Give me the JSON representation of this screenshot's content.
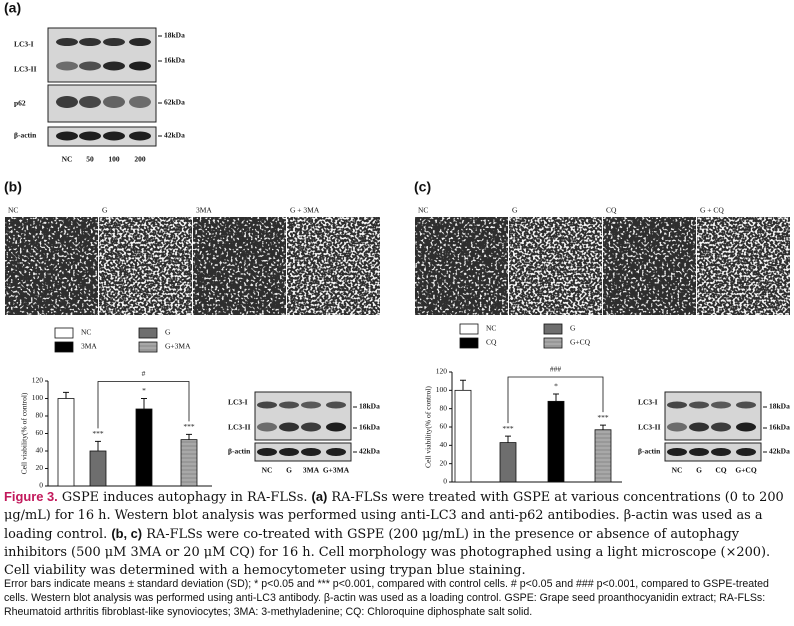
{
  "panel_a": {
    "label": "(a)",
    "rows": [
      "LC3-I",
      "LC3-II",
      "p62",
      "β-actin"
    ],
    "markers": [
      "18kDa",
      "16kDa",
      "62kDa",
      "42kDa"
    ],
    "lanes": [
      "NC",
      "50",
      "100",
      "200"
    ]
  },
  "panel_b": {
    "label": "(b)",
    "images": [
      "NC",
      "G",
      "3MA",
      "G + 3MA"
    ],
    "chart": {
      "type": "bar",
      "y_label": "Cell viability(% of control)",
      "ylim": [
        0,
        120
      ],
      "yticks": [
        0,
        20,
        40,
        60,
        80,
        100,
        120
      ],
      "comparison": "#",
      "series": [
        {
          "name": "NC",
          "color": "#ffffff",
          "values": [
            100
          ],
          "errors": [
            7
          ],
          "annotations": [
            null
          ]
        },
        {
          "name": "G",
          "color": "#6e6e6e",
          "values": [
            40
          ],
          "errors": [
            11
          ],
          "annotations": [
            "***"
          ]
        },
        {
          "name": "3MA",
          "color": "#000000",
          "values": [
            88
          ],
          "errors": [
            12
          ],
          "annotations": [
            "*"
          ]
        },
        {
          "name": "G+3MA",
          "color": "#a8a8a8",
          "values": [
            53
          ],
          "errors": [
            6
          ],
          "annotations": [
            "***"
          ]
        }
      ]
    },
    "blot": {
      "rows": [
        "LC3-I",
        "LC3-II",
        "β-actin"
      ],
      "markers": [
        "18kDa",
        "16kDa",
        "42kDa"
      ],
      "lanes": [
        "NC",
        "G",
        "3MA",
        "G+3MA"
      ]
    }
  },
  "panel_c": {
    "label": "(c)",
    "images": [
      "NC",
      "G",
      "CQ",
      "G + CQ"
    ],
    "chart": {
      "type": "bar",
      "y_label": "Cell viability(% of control)",
      "ylim": [
        0,
        120
      ],
      "yticks": [
        0,
        20,
        40,
        60,
        80,
        100,
        120
      ],
      "comparison": "###",
      "series": [
        {
          "name": "NC",
          "color": "#ffffff",
          "values": [
            100
          ],
          "errors": [
            11
          ],
          "annotations": [
            null
          ]
        },
        {
          "name": "G",
          "color": "#6e6e6e",
          "values": [
            43
          ],
          "errors": [
            7
          ],
          "annotations": [
            "***"
          ]
        },
        {
          "name": "CQ",
          "color": "#000000",
          "values": [
            88
          ],
          "errors": [
            8
          ],
          "annotations": [
            "*"
          ]
        },
        {
          "name": "G+CQ",
          "color": "#a8a8a8",
          "values": [
            57
          ],
          "errors": [
            5
          ],
          "annotations": [
            "***"
          ]
        }
      ]
    },
    "blot": {
      "rows": [
        "LC3-I",
        "LC3-II",
        "β-actin"
      ],
      "markers": [
        "18kDa",
        "16kDa",
        "42kDa"
      ],
      "lanes": [
        "NC",
        "G",
        "CQ",
        "G+CQ"
      ]
    }
  },
  "caption": {
    "label": "Figure 3.",
    "intro": "GSPE induces autophagy in RA-FLSs.",
    "tag_a": "(a)",
    "text_a": "RA-FLSs were treated with GSPE at various concentrations (0 to 200 μg/mL) for 16 h. Western blot analysis was performed using anti-LC3 and anti-p62 antibodies. β-actin was used as a loading control.",
    "tag_bc": "(b, c)",
    "text_bc": "RA-FLSs were co-treated with GSPE (200 μg/mL) in the presence or absence of autophagy inhibitors (500 μM 3MA or 20 μM CQ) for 16 h. Cell morphology was photographed using a light microscope (×200). Cell viability was determined with a hemocytometer using trypan blue staining."
  },
  "footnote": "Error bars indicate means ± standard deviation (SD); * p<0.05 and *** p<0.001, compared with control cells. # p<0.05 and ### p<0.001, compared to GSPE-treated cells. Western blot analysis was performed using anti-LC3 antibody. β-actin was used as a loading control. GSPE: Grape seed proanthocyanidin extract; RA-FLSs: Rheumatoid arthritis fibroblast-like synoviocytes; 3MA: 3-methyladenine; CQ: Chloroquine diphosphate salt solid."
}
